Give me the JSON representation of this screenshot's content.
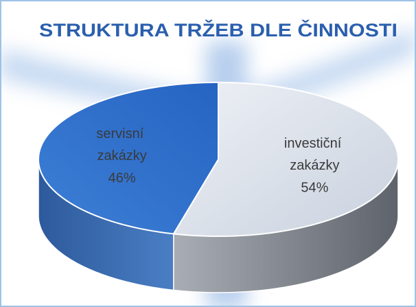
{
  "chart_data": {
    "type": "pie3d",
    "title": "STRUKTURA TRŽEB DLE ČINNOSTI",
    "categories": [
      "investiční zakázky",
      "servisní zakázky"
    ],
    "values": [
      54,
      46
    ],
    "value_labels": [
      "54%",
      "46%"
    ],
    "colors": [
      "#d5dce8",
      "#3274cf"
    ],
    "side_colors": [
      "#80858e",
      "#2e5b9e"
    ]
  }
}
